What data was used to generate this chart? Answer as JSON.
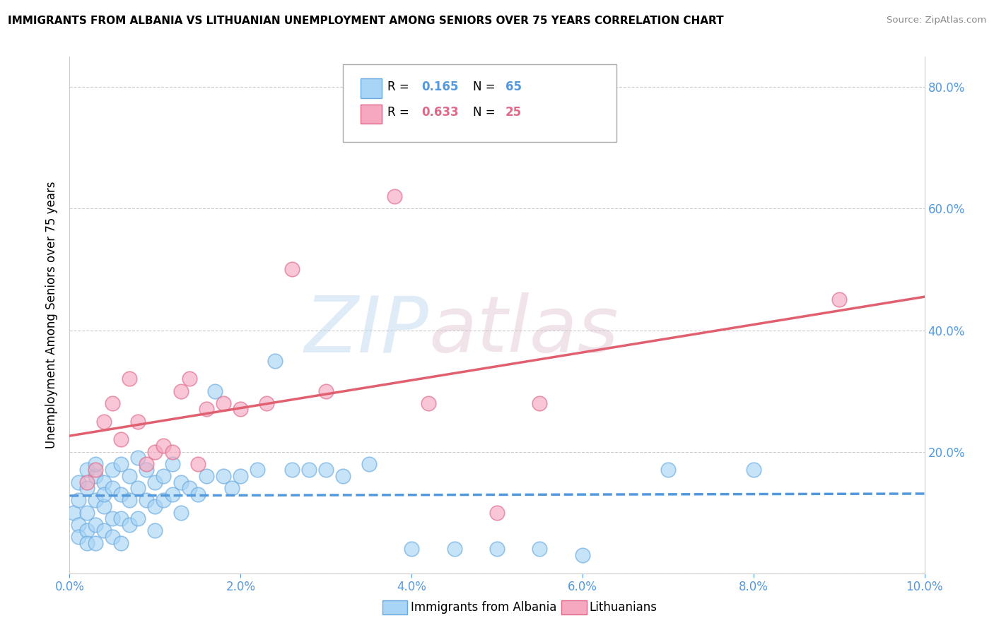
{
  "title": "IMMIGRANTS FROM ALBANIA VS LITHUANIAN UNEMPLOYMENT AMONG SENIORS OVER 75 YEARS CORRELATION CHART",
  "source": "Source: ZipAtlas.com",
  "ylabel": "Unemployment Among Seniors over 75 years",
  "watermark_zip": "ZIP",
  "watermark_atlas": "atlas",
  "legend_r1": "R = 0.165",
  "legend_n1": "N = 65",
  "legend_r2": "R = 0.633",
  "legend_n2": "N = 25",
  "legend_label1": "Immigrants from Albania",
  "legend_label2": "Lithuanians",
  "xlim": [
    0.0,
    0.1
  ],
  "ylim": [
    0.0,
    0.85
  ],
  "xticks": [
    0.0,
    0.02,
    0.04,
    0.06,
    0.08,
    0.1
  ],
  "yticks_right": [
    0.2,
    0.4,
    0.6,
    0.8
  ],
  "blue_fill": "#a8d4f5",
  "blue_edge": "#6aaae0",
  "pink_fill": "#f5a8c0",
  "pink_edge": "#e06888",
  "blue_line": "#5599dd",
  "pink_line": "#e06070",
  "tick_color": "#5599dd",
  "albania_x": [
    0.0005,
    0.001,
    0.001,
    0.001,
    0.001,
    0.002,
    0.002,
    0.002,
    0.002,
    0.002,
    0.003,
    0.003,
    0.003,
    0.003,
    0.003,
    0.004,
    0.004,
    0.004,
    0.004,
    0.005,
    0.005,
    0.005,
    0.005,
    0.006,
    0.006,
    0.006,
    0.006,
    0.007,
    0.007,
    0.007,
    0.008,
    0.008,
    0.008,
    0.009,
    0.009,
    0.01,
    0.01,
    0.01,
    0.011,
    0.011,
    0.012,
    0.012,
    0.013,
    0.013,
    0.014,
    0.015,
    0.016,
    0.017,
    0.018,
    0.019,
    0.02,
    0.022,
    0.024,
    0.026,
    0.028,
    0.03,
    0.032,
    0.035,
    0.04,
    0.045,
    0.05,
    0.055,
    0.06,
    0.07,
    0.08
  ],
  "albania_y": [
    0.1,
    0.12,
    0.08,
    0.15,
    0.06,
    0.14,
    0.1,
    0.17,
    0.07,
    0.05,
    0.16,
    0.12,
    0.08,
    0.18,
    0.05,
    0.15,
    0.11,
    0.07,
    0.13,
    0.17,
    0.09,
    0.14,
    0.06,
    0.18,
    0.13,
    0.09,
    0.05,
    0.16,
    0.12,
    0.08,
    0.19,
    0.14,
    0.09,
    0.17,
    0.12,
    0.15,
    0.11,
    0.07,
    0.16,
    0.12,
    0.18,
    0.13,
    0.15,
    0.1,
    0.14,
    0.13,
    0.16,
    0.3,
    0.16,
    0.14,
    0.16,
    0.17,
    0.35,
    0.17,
    0.17,
    0.17,
    0.16,
    0.18,
    0.04,
    0.04,
    0.04,
    0.04,
    0.03,
    0.17,
    0.17
  ],
  "lithuanian_x": [
    0.002,
    0.003,
    0.004,
    0.005,
    0.006,
    0.007,
    0.008,
    0.009,
    0.01,
    0.011,
    0.012,
    0.013,
    0.014,
    0.015,
    0.016,
    0.018,
    0.02,
    0.023,
    0.026,
    0.03,
    0.038,
    0.042,
    0.05,
    0.09,
    0.055
  ],
  "lithuanian_y": [
    0.15,
    0.17,
    0.25,
    0.28,
    0.22,
    0.32,
    0.25,
    0.18,
    0.2,
    0.21,
    0.2,
    0.3,
    0.32,
    0.18,
    0.27,
    0.28,
    0.27,
    0.28,
    0.5,
    0.3,
    0.62,
    0.28,
    0.1,
    0.45,
    0.28
  ]
}
